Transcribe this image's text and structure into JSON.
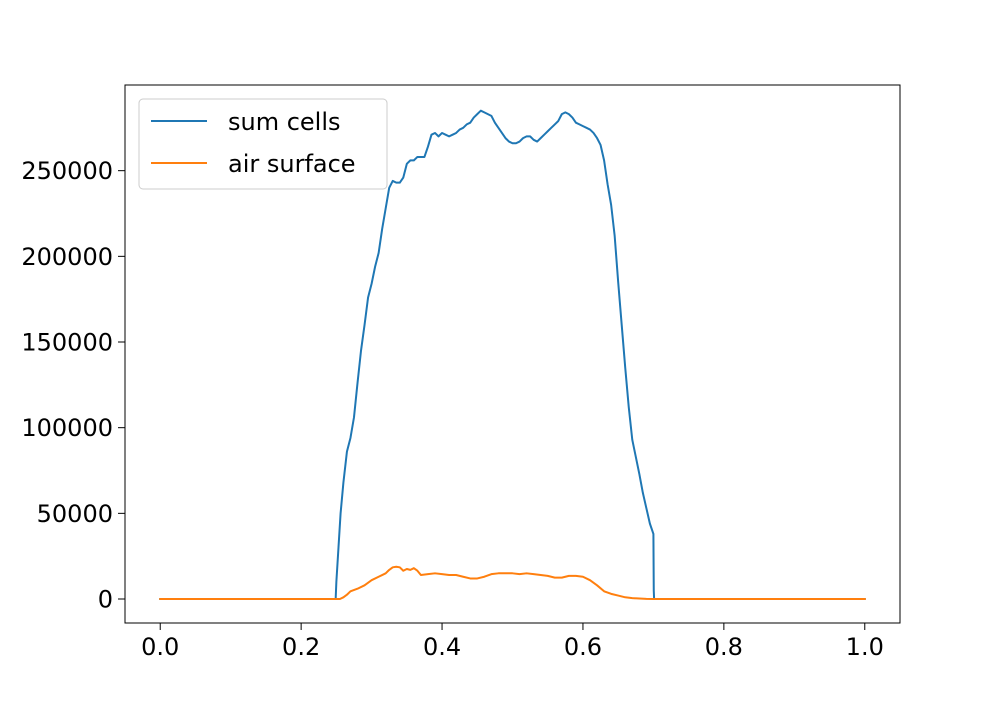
{
  "chart_data": {
    "type": "line",
    "title": "",
    "xlabel": "",
    "ylabel": "",
    "xlim": [
      -0.05,
      1.05
    ],
    "ylim": [
      -14000,
      300000
    ],
    "xticks": [
      0.0,
      0.2,
      0.4,
      0.6,
      0.8,
      1.0
    ],
    "xtick_labels": [
      "0.0",
      "0.2",
      "0.4",
      "0.6",
      "0.8",
      "1.0"
    ],
    "yticks": [
      0,
      50000,
      100000,
      150000,
      200000,
      250000
    ],
    "ytick_labels": [
      "0",
      "50000",
      "100000",
      "150000",
      "200000",
      "250000"
    ],
    "grid": false,
    "legend_position": "upper-left",
    "series": [
      {
        "name": "sum cells",
        "color": "#1f77b4",
        "points": [
          [
            0.0,
            0
          ],
          [
            0.249,
            0
          ],
          [
            0.25,
            10000
          ],
          [
            0.253,
            30000
          ],
          [
            0.256,
            50000
          ],
          [
            0.26,
            68000
          ],
          [
            0.265,
            86000
          ],
          [
            0.27,
            94000
          ],
          [
            0.275,
            106000
          ],
          [
            0.28,
            126000
          ],
          [
            0.285,
            145000
          ],
          [
            0.29,
            160000
          ],
          [
            0.295,
            176000
          ],
          [
            0.3,
            184000
          ],
          [
            0.305,
            194000
          ],
          [
            0.31,
            202000
          ],
          [
            0.315,
            216000
          ],
          [
            0.32,
            228000
          ],
          [
            0.325,
            240000
          ],
          [
            0.33,
            244000
          ],
          [
            0.335,
            243000
          ],
          [
            0.34,
            243000
          ],
          [
            0.345,
            246000
          ],
          [
            0.35,
            254000
          ],
          [
            0.355,
            256000
          ],
          [
            0.36,
            256000
          ],
          [
            0.365,
            258000
          ],
          [
            0.37,
            258000
          ],
          [
            0.375,
            258000
          ],
          [
            0.38,
            264000
          ],
          [
            0.385,
            271000
          ],
          [
            0.39,
            272000
          ],
          [
            0.395,
            270000
          ],
          [
            0.4,
            272000
          ],
          [
            0.405,
            271000
          ],
          [
            0.41,
            270000
          ],
          [
            0.415,
            271000
          ],
          [
            0.42,
            272000
          ],
          [
            0.425,
            274000
          ],
          [
            0.43,
            275000
          ],
          [
            0.435,
            277000
          ],
          [
            0.44,
            278000
          ],
          [
            0.445,
            281000
          ],
          [
            0.45,
            283000
          ],
          [
            0.455,
            285000
          ],
          [
            0.46,
            284000
          ],
          [
            0.465,
            283000
          ],
          [
            0.47,
            282000
          ],
          [
            0.475,
            278000
          ],
          [
            0.48,
            275000
          ],
          [
            0.485,
            272000
          ],
          [
            0.49,
            269000
          ],
          [
            0.495,
            267000
          ],
          [
            0.5,
            266000
          ],
          [
            0.505,
            266000
          ],
          [
            0.51,
            267000
          ],
          [
            0.515,
            269000
          ],
          [
            0.52,
            270000
          ],
          [
            0.525,
            270000
          ],
          [
            0.53,
            268000
          ],
          [
            0.535,
            267000
          ],
          [
            0.54,
            269000
          ],
          [
            0.545,
            271000
          ],
          [
            0.55,
            273000
          ],
          [
            0.555,
            275000
          ],
          [
            0.56,
            277000
          ],
          [
            0.565,
            279000
          ],
          [
            0.57,
            283000
          ],
          [
            0.575,
            284000
          ],
          [
            0.58,
            283000
          ],
          [
            0.585,
            281000
          ],
          [
            0.59,
            278000
          ],
          [
            0.595,
            277000
          ],
          [
            0.6,
            276000
          ],
          [
            0.605,
            275000
          ],
          [
            0.61,
            274000
          ],
          [
            0.615,
            272000
          ],
          [
            0.62,
            269000
          ],
          [
            0.625,
            265000
          ],
          [
            0.63,
            256000
          ],
          [
            0.635,
            242000
          ],
          [
            0.64,
            230000
          ],
          [
            0.645,
            212000
          ],
          [
            0.65,
            185000
          ],
          [
            0.655,
            160000
          ],
          [
            0.66,
            135000
          ],
          [
            0.665,
            112000
          ],
          [
            0.67,
            93000
          ],
          [
            0.675,
            83000
          ],
          [
            0.68,
            73000
          ],
          [
            0.685,
            62000
          ],
          [
            0.69,
            53000
          ],
          [
            0.695,
            44000
          ],
          [
            0.7,
            38000
          ],
          [
            0.7005,
            5000
          ],
          [
            0.701,
            0
          ],
          [
            1.0,
            0
          ]
        ]
      },
      {
        "name": "air surface",
        "color": "#ff7f0e",
        "points": [
          [
            0.0,
            0
          ],
          [
            0.255,
            0
          ],
          [
            0.26,
            1000
          ],
          [
            0.265,
            2500
          ],
          [
            0.27,
            4500
          ],
          [
            0.28,
            6000
          ],
          [
            0.29,
            8000
          ],
          [
            0.3,
            11000
          ],
          [
            0.31,
            13000
          ],
          [
            0.32,
            15000
          ],
          [
            0.325,
            17000
          ],
          [
            0.33,
            18500
          ],
          [
            0.335,
            18800
          ],
          [
            0.34,
            18500
          ],
          [
            0.345,
            16500
          ],
          [
            0.35,
            17500
          ],
          [
            0.355,
            17000
          ],
          [
            0.36,
            18000
          ],
          [
            0.365,
            16500
          ],
          [
            0.37,
            14000
          ],
          [
            0.38,
            14500
          ],
          [
            0.39,
            15000
          ],
          [
            0.4,
            14500
          ],
          [
            0.41,
            14000
          ],
          [
            0.42,
            14000
          ],
          [
            0.43,
            13000
          ],
          [
            0.44,
            12000
          ],
          [
            0.45,
            12000
          ],
          [
            0.46,
            13000
          ],
          [
            0.47,
            14500
          ],
          [
            0.48,
            15000
          ],
          [
            0.49,
            15000
          ],
          [
            0.5,
            15000
          ],
          [
            0.51,
            14500
          ],
          [
            0.52,
            15000
          ],
          [
            0.53,
            14500
          ],
          [
            0.54,
            14000
          ],
          [
            0.55,
            13500
          ],
          [
            0.56,
            12500
          ],
          [
            0.57,
            12500
          ],
          [
            0.58,
            13500
          ],
          [
            0.59,
            13500
          ],
          [
            0.6,
            13000
          ],
          [
            0.61,
            11000
          ],
          [
            0.62,
            8000
          ],
          [
            0.63,
            4500
          ],
          [
            0.64,
            3000
          ],
          [
            0.65,
            2000
          ],
          [
            0.66,
            1000
          ],
          [
            0.67,
            500
          ],
          [
            0.68,
            300
          ],
          [
            0.69,
            100
          ],
          [
            0.7,
            0
          ],
          [
            1.0,
            0
          ]
        ]
      }
    ]
  }
}
